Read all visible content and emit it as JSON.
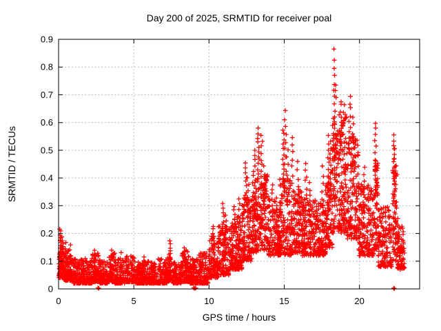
{
  "window": {
    "bg": "#ffffff"
  },
  "chart_data": {
    "type": "scatter",
    "title": "Day 200 of 2025, SRMTID for receiver poal",
    "xlabel": "GPS time / hours",
    "ylabel": "SRMTID / TECUs",
    "xlim": [
      0,
      24
    ],
    "ylim": [
      0,
      0.9
    ],
    "xticks": [
      0,
      5,
      10,
      15,
      20
    ],
    "xtick_labels": [
      "0",
      "5",
      "10",
      "15",
      "20"
    ],
    "yticks": [
      0,
      0.1,
      0.2,
      0.3,
      0.4,
      0.5,
      0.6,
      0.7,
      0.8,
      0.9
    ],
    "ytick_labels": [
      "0",
      "0.1",
      "0.2",
      "0.3",
      "0.4",
      "0.5",
      "0.6",
      "0.7",
      "0.8",
      "0.9"
    ],
    "grid": "dotted",
    "legend": "none",
    "marker": "plus",
    "marker_color": "#ff0000",
    "axis_color": "#000000",
    "grid_color": "#9e9e9e",
    "seed": 1337,
    "bands": [
      [
        0.0,
        0.35,
        0.04,
        0.16,
        70,
        1.5
      ],
      [
        0.35,
        0.7,
        0.03,
        0.14,
        60,
        1.6
      ],
      [
        0.7,
        1.0,
        0.03,
        0.12,
        50,
        1.7
      ],
      [
        1.0,
        2.25,
        0.02,
        0.11,
        230,
        2.0
      ],
      [
        2.25,
        2.75,
        0.025,
        0.13,
        80,
        1.8
      ],
      [
        2.75,
        3.3,
        0.02,
        0.1,
        90,
        2.0
      ],
      [
        3.3,
        3.75,
        0.025,
        0.13,
        70,
        1.8
      ],
      [
        3.75,
        4.4,
        0.02,
        0.11,
        100,
        2.0
      ],
      [
        4.4,
        5.1,
        0.025,
        0.12,
        110,
        1.9
      ],
      [
        5.1,
        6.6,
        0.02,
        0.1,
        240,
        2.0
      ],
      [
        6.6,
        7.2,
        0.02,
        0.11,
        100,
        1.9
      ],
      [
        7.2,
        7.6,
        0.03,
        0.13,
        60,
        1.7
      ],
      [
        7.6,
        8.15,
        0.02,
        0.1,
        90,
        2.0
      ],
      [
        8.15,
        8.7,
        0.025,
        0.14,
        90,
        1.8
      ],
      [
        8.7,
        9.3,
        0.02,
        0.11,
        100,
        1.9
      ],
      [
        9.3,
        9.95,
        0.02,
        0.13,
        110,
        1.8
      ],
      [
        9.95,
        10.6,
        0.04,
        0.19,
        110,
        1.6
      ],
      [
        10.6,
        11.35,
        0.05,
        0.23,
        130,
        1.5
      ],
      [
        11.35,
        12.2,
        0.07,
        0.26,
        150,
        1.5
      ],
      [
        12.2,
        12.85,
        0.1,
        0.33,
        120,
        1.4
      ],
      [
        12.85,
        13.35,
        0.13,
        0.4,
        100,
        1.3
      ],
      [
        13.35,
        13.95,
        0.14,
        0.42,
        110,
        1.3
      ],
      [
        13.95,
        14.7,
        0.12,
        0.33,
        130,
        1.4
      ],
      [
        14.7,
        15.45,
        0.12,
        0.4,
        130,
        1.3
      ],
      [
        15.45,
        16.2,
        0.13,
        0.36,
        130,
        1.4
      ],
      [
        16.2,
        17.05,
        0.12,
        0.33,
        140,
        1.4
      ],
      [
        17.05,
        17.75,
        0.12,
        0.32,
        120,
        1.4
      ],
      [
        17.75,
        18.2,
        0.15,
        0.45,
        90,
        1.3
      ],
      [
        18.2,
        18.55,
        0.2,
        0.62,
        80,
        1.2
      ],
      [
        18.55,
        19.15,
        0.2,
        0.64,
        120,
        1.2
      ],
      [
        19.15,
        19.95,
        0.18,
        0.55,
        150,
        1.3
      ],
      [
        19.95,
        20.95,
        0.12,
        0.38,
        160,
        1.5
      ],
      [
        20.95,
        21.25,
        0.14,
        0.46,
        60,
        1.3
      ],
      [
        21.25,
        22.15,
        0.08,
        0.3,
        140,
        1.6
      ],
      [
        22.2,
        22.5,
        0.1,
        0.46,
        70,
        1.2
      ],
      [
        22.5,
        23.0,
        0.07,
        0.24,
        70,
        1.6
      ]
    ],
    "spikes": [
      [
        0.12,
        0.08,
        0.215,
        16
      ],
      [
        0.2,
        0.07,
        0.19,
        12
      ],
      [
        0.28,
        0.06,
        0.17,
        10
      ],
      [
        0.5,
        0.06,
        0.165,
        8
      ],
      [
        0.75,
        0.05,
        0.16,
        6
      ],
      [
        2.45,
        0.08,
        0.135,
        5
      ],
      [
        3.5,
        0.08,
        0.135,
        5
      ],
      [
        4.15,
        0.08,
        0.13,
        4
      ],
      [
        5.65,
        0.07,
        0.12,
        4
      ],
      [
        7.4,
        0.1,
        0.17,
        8
      ],
      [
        8.4,
        0.08,
        0.145,
        6
      ],
      [
        10.3,
        0.14,
        0.23,
        7
      ],
      [
        10.95,
        0.18,
        0.31,
        9
      ],
      [
        11.15,
        0.16,
        0.27,
        6
      ],
      [
        11.7,
        0.2,
        0.3,
        7
      ],
      [
        12.0,
        0.2,
        0.33,
        7
      ],
      [
        12.45,
        0.3,
        0.45,
        10
      ],
      [
        12.6,
        0.28,
        0.4,
        6
      ],
      [
        13.0,
        0.33,
        0.5,
        10
      ],
      [
        13.28,
        0.4,
        0.575,
        12
      ],
      [
        13.5,
        0.36,
        0.555,
        10
      ],
      [
        13.68,
        0.3,
        0.44,
        7
      ],
      [
        14.2,
        0.26,
        0.38,
        7
      ],
      [
        14.95,
        0.38,
        0.575,
        12
      ],
      [
        15.08,
        0.42,
        0.64,
        9
      ],
      [
        15.2,
        0.33,
        0.5,
        7
      ],
      [
        15.55,
        0.33,
        0.55,
        9
      ],
      [
        15.9,
        0.28,
        0.46,
        7
      ],
      [
        16.45,
        0.28,
        0.45,
        9
      ],
      [
        16.7,
        0.26,
        0.38,
        6
      ],
      [
        17.55,
        0.24,
        0.44,
        8
      ],
      [
        17.95,
        0.33,
        0.55,
        10
      ],
      [
        18.1,
        0.38,
        0.53,
        8
      ],
      [
        18.33,
        0.55,
        0.74,
        9
      ],
      [
        18.75,
        0.5,
        0.68,
        10
      ],
      [
        18.95,
        0.48,
        0.66,
        8
      ],
      [
        19.35,
        0.5,
        0.69,
        10
      ],
      [
        19.6,
        0.42,
        0.62,
        8
      ],
      [
        20.3,
        0.28,
        0.44,
        7
      ],
      [
        21.05,
        0.42,
        0.6,
        9
      ],
      [
        21.1,
        0.3,
        0.46,
        6
      ],
      [
        22.3,
        0.44,
        0.555,
        8
      ],
      [
        22.35,
        0.35,
        0.5,
        6
      ],
      [
        22.6,
        0.15,
        0.25,
        5
      ]
    ],
    "outliers": [
      [
        18.3,
        0.865
      ],
      [
        18.33,
        0.825
      ],
      [
        18.32,
        0.795
      ],
      [
        18.35,
        0.77
      ],
      [
        18.42,
        0.735
      ],
      [
        18.4,
        0.715
      ],
      [
        18.45,
        0.69
      ],
      [
        2.62,
        0.004
      ],
      [
        2.68,
        0.002
      ],
      [
        8.98,
        0.004
      ],
      [
        9.05,
        0.002
      ],
      [
        9.12,
        0.003
      ],
      [
        22.28,
        0.003
      ],
      [
        22.33,
        0.001
      ]
    ]
  }
}
